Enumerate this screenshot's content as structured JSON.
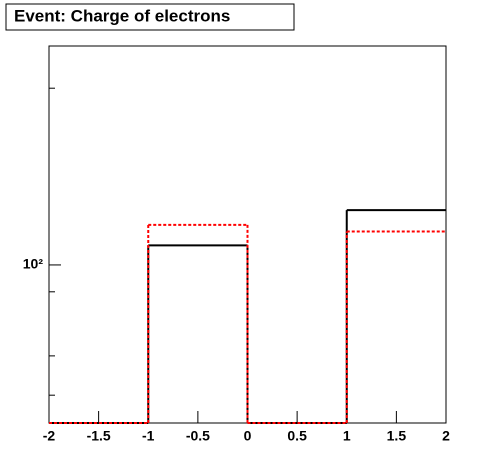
{
  "chart_data": {
    "type": "histogram",
    "title": "Event: Charge of electrons",
    "bins": [
      -2,
      -1,
      0,
      1,
      2
    ],
    "series": [
      {
        "color": "#000000",
        "dashed": false,
        "values": [
          0,
          108,
          0,
          124
        ]
      },
      {
        "color": "#ff0000",
        "dashed": true,
        "values": [
          0,
          117,
          0,
          114
        ]
      }
    ],
    "xlim": [
      -2,
      2
    ],
    "xticks": [
      -2,
      -1.5,
      -1,
      -0.5,
      0,
      0.5,
      1,
      1.5,
      2
    ],
    "ylim": [
      53.8,
      236
    ],
    "ylog": true,
    "yticks": [
      {
        "value": 100,
        "label": "10²"
      }
    ],
    "yminor_ticks": [
      60,
      70,
      90,
      200
    ]
  }
}
